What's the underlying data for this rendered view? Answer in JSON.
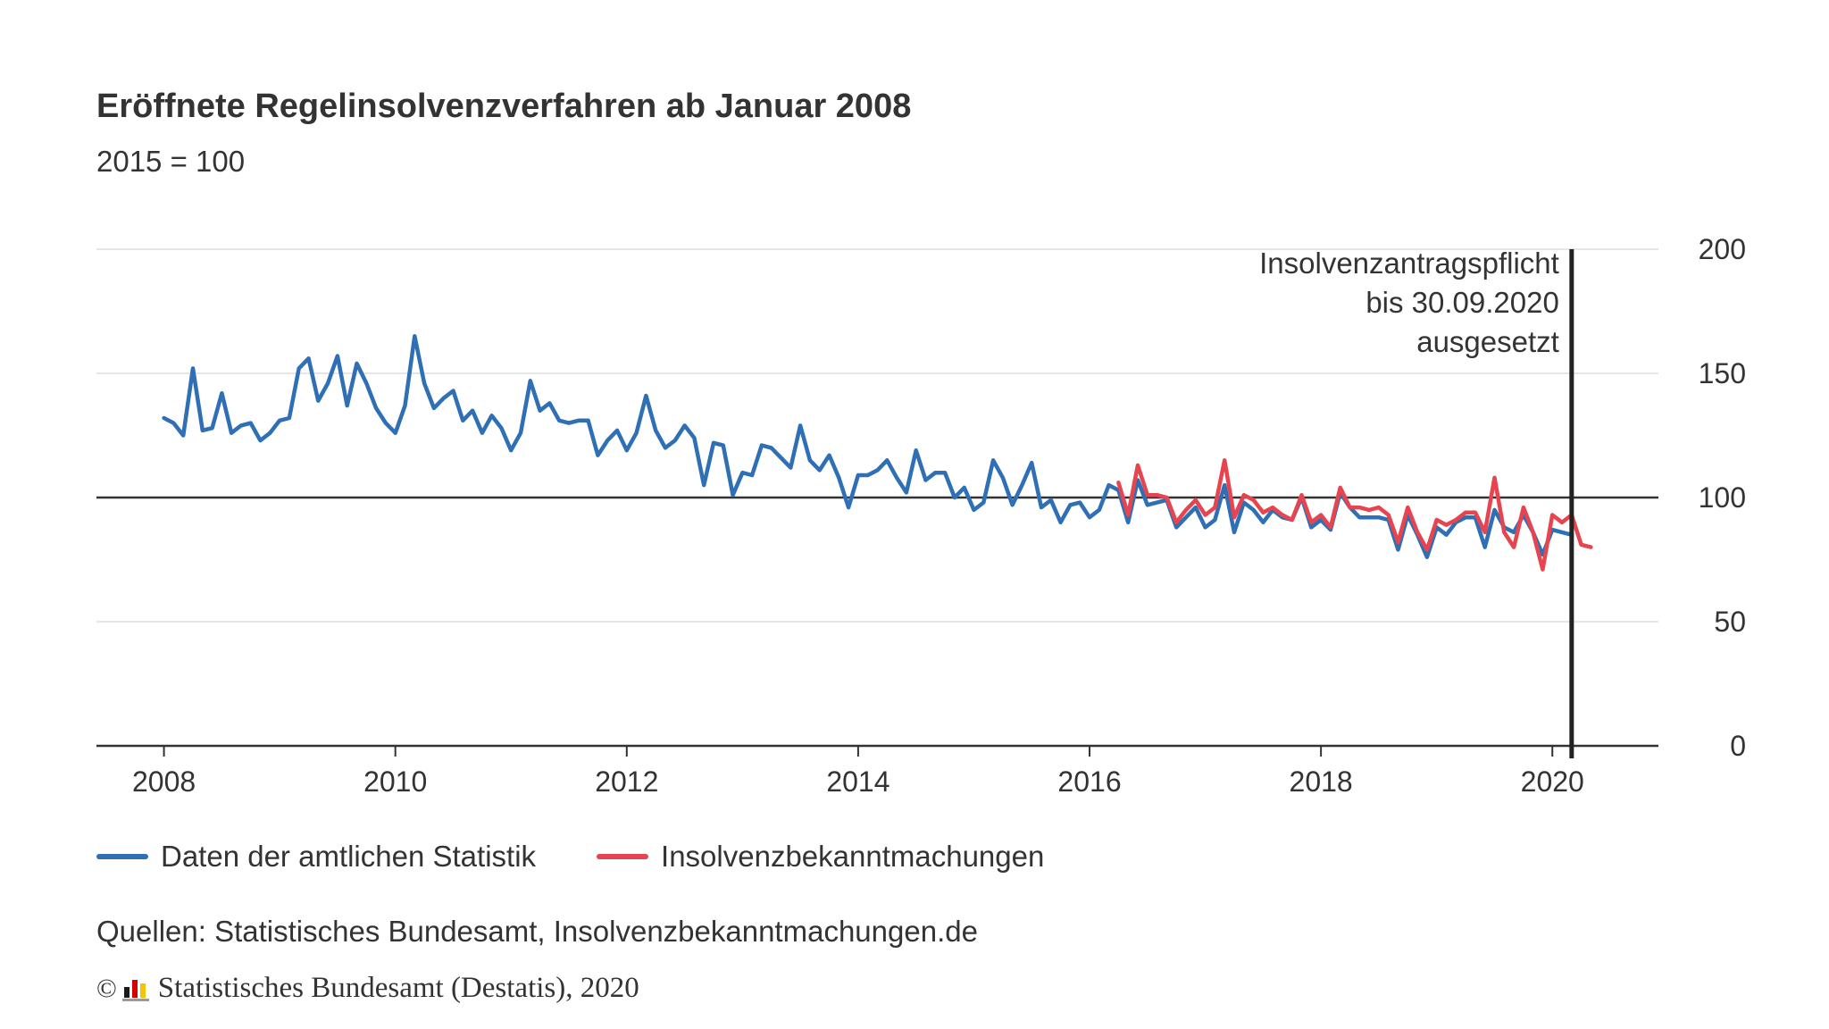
{
  "chart_data": {
    "type": "line",
    "title": "Eröffnete Regelinsolvenzverfahren ab Januar 2008",
    "subtitle": "2015 = 100",
    "ylim": [
      0,
      200
    ],
    "yticks": [
      0,
      50,
      100,
      150,
      200
    ],
    "xlim": [
      "2007-06",
      "2020-12"
    ],
    "xticks": [
      "2008",
      "2010",
      "2012",
      "2014",
      "2016",
      "2018",
      "2020"
    ],
    "grid": true,
    "reference_line": 100,
    "legend_position": "bottom-left",
    "annotation": {
      "date": "2020-03",
      "lines": [
        "Insolvenzantragspflicht",
        "bis 30.09.2020",
        "ausgesetzt"
      ]
    },
    "series": [
      {
        "name": "Daten der amtlichen Statistik",
        "color": "#2e6fb5",
        "start": "2008-01",
        "values": [
          132,
          130,
          125,
          152,
          127,
          128,
          142,
          126,
          129,
          130,
          123,
          126,
          131,
          132,
          152,
          156,
          139,
          146,
          157,
          137,
          154,
          146,
          136,
          130,
          126,
          137,
          165,
          146,
          136,
          140,
          143,
          131,
          135,
          126,
          133,
          128,
          119,
          126,
          147,
          135,
          138,
          131,
          130,
          131,
          131,
          117,
          123,
          127,
          119,
          126,
          141,
          127,
          120,
          123,
          129,
          124,
          105,
          122,
          121,
          101,
          110,
          109,
          121,
          120,
          116,
          112,
          129,
          115,
          111,
          117,
          108,
          96,
          109,
          109,
          111,
          115,
          108,
          102,
          119,
          107,
          110,
          110,
          100,
          104,
          95,
          98,
          115,
          108,
          97,
          105,
          114,
          96,
          99,
          90,
          97,
          98,
          92,
          95,
          105,
          103,
          90,
          107,
          97,
          98,
          99,
          88,
          92,
          96,
          88,
          91,
          105,
          86,
          98,
          95,
          90,
          95,
          92,
          91,
          100,
          88,
          91,
          87,
          102,
          96,
          92,
          92,
          92,
          91,
          79,
          93,
          85,
          76,
          88,
          85,
          90,
          92,
          92,
          80,
          95,
          88,
          86,
          93,
          86,
          77,
          87,
          86,
          85
        ]
      },
      {
        "name": "Insolvenzbekanntmachungen",
        "color": "#e8444f",
        "start": "2016-04",
        "values": [
          106,
          93,
          113,
          101,
          101,
          100,
          90,
          95,
          99,
          93,
          96,
          115,
          92,
          101,
          99,
          94,
          96,
          93,
          91,
          101,
          90,
          93,
          88,
          104,
          96,
          96,
          95,
          96,
          93,
          82,
          96,
          86,
          79,
          91,
          89,
          91,
          94,
          94,
          86,
          108,
          86,
          80,
          96,
          86,
          71,
          93,
          90,
          93,
          81,
          80
        ]
      }
    ]
  },
  "legend": {
    "official": "Daten der amtlichen Statistik",
    "announcements": "Insolvenzbekanntmachungen"
  },
  "source": "Quellen: Statistisches Bundesamt, Insolvenzbekanntmachungen.de",
  "copyright": {
    "symbol": "©",
    "text": "Statistisches Bundesamt (Destatis), 2020"
  },
  "colors": {
    "blue": "#2e6fb5",
    "red": "#e8444f",
    "grid": "#dddddd",
    "axis": "#333333"
  }
}
